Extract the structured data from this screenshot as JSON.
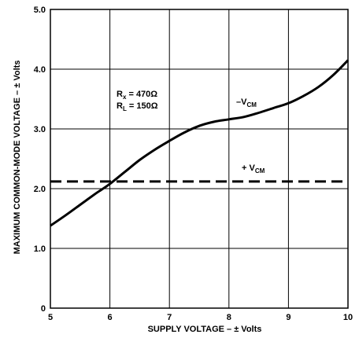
{
  "chart_data": {
    "type": "line",
    "xlabel": "SUPPLY VOLTAGE – ± Volts",
    "ylabel": "MAXIMUM COMMON-MODE VOLTAGE – ± Volts",
    "xlim": [
      5,
      10
    ],
    "ylim": [
      0,
      5.0
    ],
    "x_ticks": [
      5,
      6,
      7,
      8,
      9,
      10
    ],
    "y_ticks": [
      0,
      1.0,
      2.0,
      3.0,
      4.0,
      5.0
    ],
    "x_tick_labels": [
      "5",
      "6",
      "7",
      "8",
      "9",
      "10"
    ],
    "y_tick_labels": [
      "0",
      "1.0",
      "2.0",
      "3.0",
      "4.0",
      "5.0"
    ],
    "grid": true,
    "annotations": {
      "rx": {
        "main": "R",
        "sub": "x",
        "value": " = 470Ω"
      },
      "rl": {
        "main": "R",
        "sub": "L",
        "value": " = 150Ω"
      }
    },
    "series": [
      {
        "name": "–V",
        "name_sub": "CM",
        "style": "solid",
        "x": [
          5.0,
          5.25,
          5.5,
          5.75,
          6.0,
          6.25,
          6.5,
          6.75,
          7.0,
          7.25,
          7.5,
          7.75,
          8.0,
          8.25,
          8.5,
          8.75,
          9.0,
          9.25,
          9.5,
          9.75,
          10.0
        ],
        "y": [
          1.38,
          1.55,
          1.73,
          1.91,
          2.08,
          2.28,
          2.48,
          2.65,
          2.8,
          2.94,
          3.05,
          3.12,
          3.16,
          3.2,
          3.27,
          3.35,
          3.43,
          3.55,
          3.7,
          3.9,
          4.15
        ]
      },
      {
        "name": "+ V",
        "name_sub": "CM",
        "style": "dashed",
        "x": [
          5.0,
          10.0
        ],
        "y": [
          2.12,
          2.12
        ]
      }
    ]
  }
}
